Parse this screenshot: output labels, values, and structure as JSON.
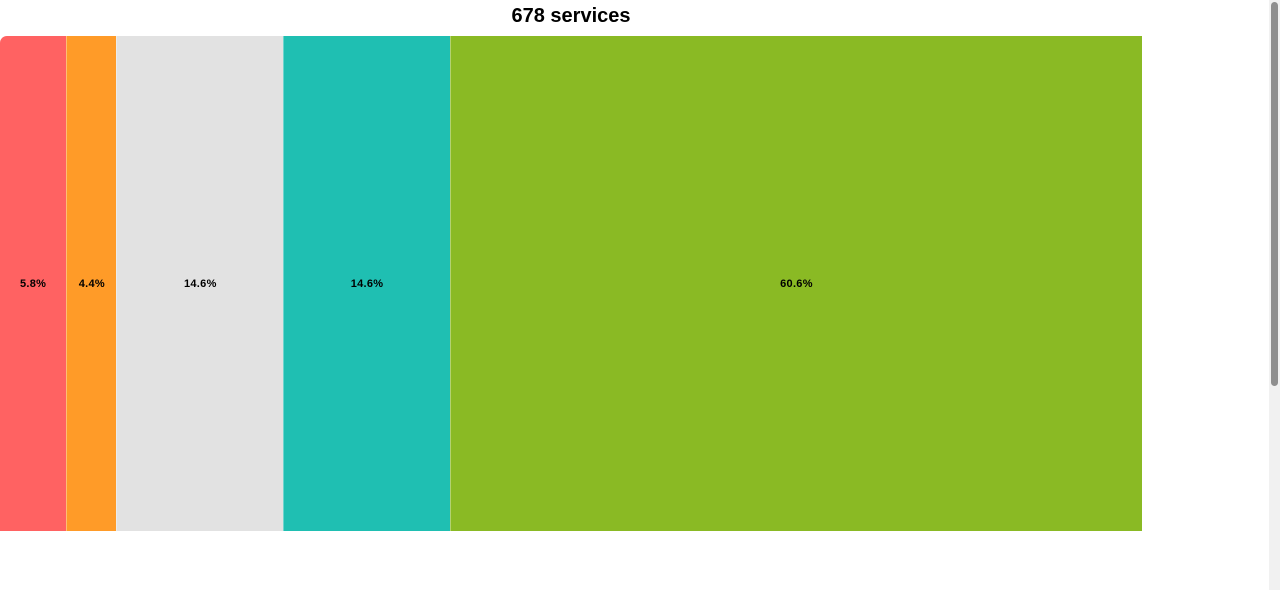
{
  "chart_data": {
    "type": "bar",
    "orientation": "stacked-horizontal-100",
    "title": "678 services",
    "categories": [
      "",
      "",
      "",
      "",
      ""
    ],
    "values": [
      5.8,
      4.4,
      14.6,
      14.6,
      60.6
    ],
    "labels": [
      "5.8%",
      "4.4%",
      "14.6%",
      "14.6%",
      "60.6%"
    ],
    "colors": [
      "#ff6262",
      "#ff9b28",
      "#e2e2e2",
      "#1fbfb2",
      "#8aba24"
    ],
    "xlabel": "",
    "ylabel": "",
    "grid": false
  }
}
